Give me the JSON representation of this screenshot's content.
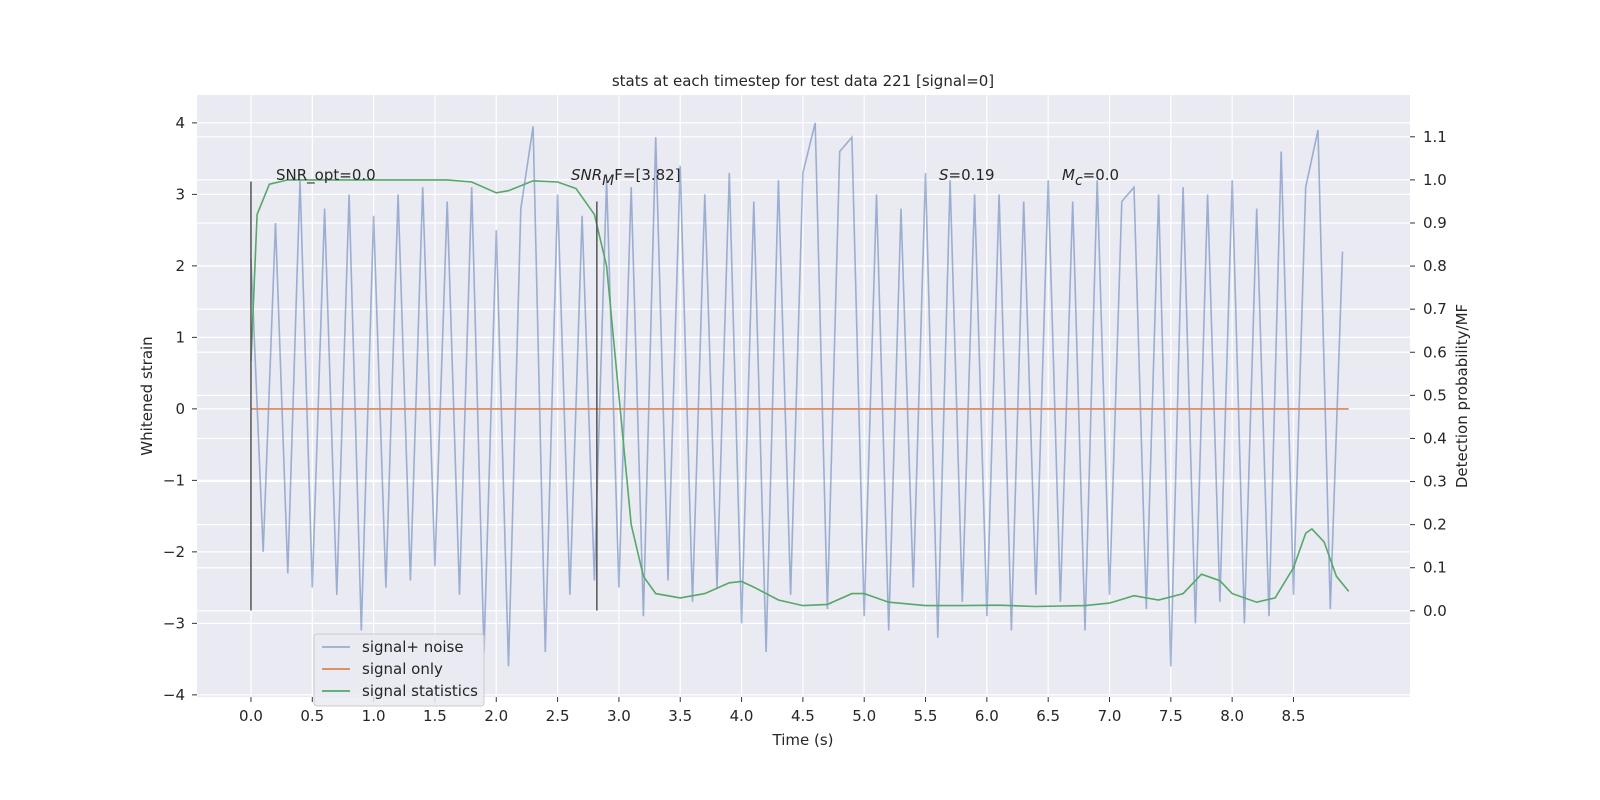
{
  "chart_data": {
    "type": "line",
    "title": "stats at each timestep for test data 221 [signal=0]",
    "x_label": "Time (s)",
    "y_label": "Whitened strain",
    "y2_label": "Detection probability/MF",
    "xlim": [
      -0.44,
      9.45
    ],
    "ylim": [
      -4.03,
      4.39
    ],
    "y2lim": [
      -0.2,
      1.197
    ],
    "xticks": [
      {
        "value": 0,
        "label": "0.0"
      },
      0.5,
      {
        "value": 1,
        "label": "1.0"
      },
      1.5,
      {
        "value": 2,
        "label": "2.0"
      },
      2.5,
      {
        "value": 3,
        "label": "3.0"
      },
      3.5,
      {
        "value": 4,
        "label": "4.0"
      },
      4.5,
      {
        "value": 5,
        "label": "5.0"
      },
      5.5,
      {
        "value": 6,
        "label": "6.0"
      },
      6.5,
      {
        "value": 7,
        "label": "7.0"
      },
      7.5,
      {
        "value": 8,
        "label": "8.0"
      },
      8.5
    ],
    "yticks": [
      {
        "value": -4,
        "label": "−4"
      },
      {
        "value": -3,
        "label": "−3"
      },
      {
        "value": -2,
        "label": "−2"
      },
      {
        "value": -1,
        "label": "−1"
      },
      0,
      1,
      2,
      3,
      4
    ],
    "y2ticks": [
      {
        "value": 0,
        "label": "0.0"
      },
      0.1,
      0.2,
      0.3,
      0.4,
      0.5,
      0.6,
      0.7,
      0.8,
      0.9,
      {
        "value": 1,
        "label": "1.0"
      },
      1.1
    ],
    "grid": true,
    "legend_position": "lower left",
    "series": [
      {
        "name": "signal+ noise",
        "color": "#4c72b0",
        "opacity": 0.5,
        "x": [
          0.0,
          0.1,
          0.2,
          0.3,
          0.4,
          0.5,
          0.6,
          0.7,
          0.8,
          0.9,
          1.0,
          1.1,
          1.2,
          1.3,
          1.4,
          1.5,
          1.6,
          1.7,
          1.8,
          1.9,
          2.0,
          2.1,
          2.2,
          2.3,
          2.4,
          2.5,
          2.6,
          2.7,
          2.8,
          2.9,
          3.0,
          3.1,
          3.2,
          3.3,
          3.4,
          3.5,
          3.6,
          3.7,
          3.8,
          3.9,
          4.0,
          4.1,
          4.2,
          4.3,
          4.4,
          4.5,
          4.6,
          4.7,
          4.8,
          4.9,
          5.0,
          5.1,
          5.2,
          5.3,
          5.4,
          5.5,
          5.6,
          5.7,
          5.8,
          5.9,
          6.0,
          6.1,
          6.2,
          6.3,
          6.4,
          6.5,
          6.6,
          6.7,
          6.8,
          6.9,
          7.0,
          7.1,
          7.2,
          7.3,
          7.4,
          7.5,
          7.6,
          7.7,
          7.8,
          7.9,
          8.0,
          8.1,
          8.2,
          8.3,
          8.4,
          8.5,
          8.6,
          8.7,
          8.8,
          8.9
        ],
        "values": [
          2.1,
          -2.0,
          2.6,
          -2.3,
          3.2,
          -2.5,
          2.8,
          -2.6,
          3.0,
          -3.1,
          2.7,
          -2.5,
          3.0,
          -2.4,
          3.1,
          -2.2,
          2.9,
          -2.6,
          3.1,
          -3.4,
          2.5,
          -3.6,
          2.8,
          3.95,
          -3.4,
          3.0,
          -2.6,
          2.7,
          -2.4,
          3.2,
          -2.5,
          3.1,
          -2.9,
          3.8,
          -2.4,
          3.4,
          -2.7,
          3.0,
          -2.5,
          3.3,
          -3.0,
          2.9,
          -3.4,
          3.2,
          -2.6,
          3.3,
          4.0,
          -2.8,
          3.6,
          3.8,
          -2.9,
          3.0,
          -3.1,
          2.8,
          -2.5,
          3.3,
          -3.2,
          3.2,
          -2.7,
          3.0,
          -2.9,
          3.0,
          -3.1,
          2.9,
          -2.6,
          3.2,
          -2.7,
          2.9,
          -3.1,
          3.2,
          -2.6,
          2.9,
          3.1,
          -2.8,
          3.0,
          -3.6,
          3.1,
          -3.0,
          3.0,
          -2.7,
          3.2,
          -3.0,
          2.8,
          -2.9,
          3.6,
          -2.6,
          3.1,
          3.9,
          -2.8,
          2.2
        ]
      },
      {
        "name": "signal only",
        "color": "#dd8452",
        "x": [
          0.0,
          8.95
        ],
        "values": [
          0,
          0
        ]
      },
      {
        "name": "signal statistics",
        "color": "#55a868",
        "axis": "y2",
        "x": [
          0.0,
          0.05,
          0.15,
          0.3,
          1.0,
          1.6,
          1.8,
          2.0,
          2.1,
          2.3,
          2.5,
          2.65,
          2.8,
          2.9,
          3.0,
          3.1,
          3.2,
          3.3,
          3.5,
          3.7,
          3.9,
          4.0,
          4.1,
          4.3,
          4.5,
          4.7,
          4.9,
          5.0,
          5.2,
          5.5,
          5.8,
          6.1,
          6.4,
          6.8,
          7.0,
          7.2,
          7.4,
          7.6,
          7.75,
          7.9,
          8.0,
          8.2,
          8.35,
          8.5,
          8.6,
          8.65,
          8.75,
          8.85,
          8.95
        ],
        "values": [
          0.58,
          0.92,
          0.99,
          1.0,
          1.0,
          1.0,
          0.995,
          0.97,
          0.975,
          0.998,
          0.995,
          0.98,
          0.92,
          0.8,
          0.5,
          0.2,
          0.08,
          0.04,
          0.03,
          0.04,
          0.065,
          0.068,
          0.055,
          0.025,
          0.012,
          0.015,
          0.04,
          0.04,
          0.02,
          0.012,
          0.012,
          0.013,
          0.01,
          0.012,
          0.018,
          0.035,
          0.025,
          0.04,
          0.085,
          0.07,
          0.04,
          0.02,
          0.03,
          0.1,
          0.18,
          0.19,
          0.16,
          0.08,
          0.045
        ]
      }
    ],
    "vlines": [
      {
        "x": 0,
        "y": [
          -2.82,
          3.18
        ],
        "color": "#555555"
      },
      {
        "x": 2.82,
        "y": [
          -2.82,
          2.9
        ],
        "color": "#555555"
      }
    ],
    "annotations": [
      {
        "parts": [
          {
            "text": "SNR_opt=0.0"
          }
        ]
      },
      {
        "parts": [
          {
            "text": "SNR",
            "italic": true
          },
          {
            "text": "M",
            "italic": true,
            "sub": true
          },
          {
            "text": "F=[3.82]"
          }
        ]
      },
      {
        "parts": [
          {
            "text": "S",
            "italic": true
          },
          {
            "text": "=0.19"
          }
        ]
      },
      {
        "parts": [
          {
            "text": "M",
            "italic": true
          },
          {
            "text": "c",
            "italic": true,
            "sub": true
          },
          {
            "text": "=0.0"
          }
        ]
      }
    ]
  }
}
